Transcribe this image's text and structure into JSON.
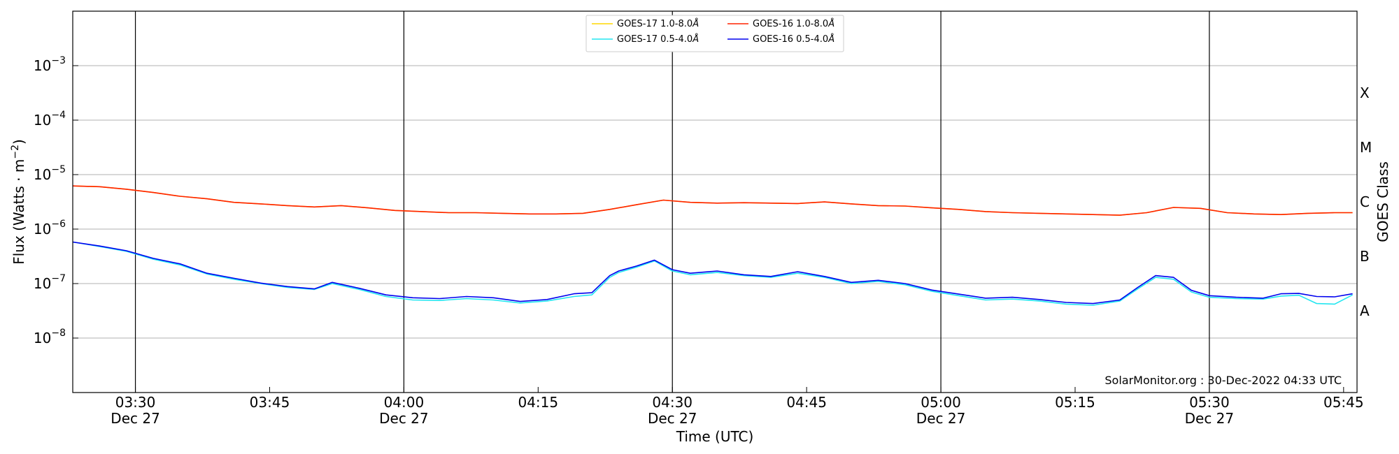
{
  "chart_data": {
    "type": "line",
    "xlabel": "Time (UTC)",
    "ylabel_prefix": "Flux (Watts · m",
    "ylabel_exp": "−2",
    "ylabel_suffix": ")",
    "right_label": "GOES Class",
    "credit": "SolarMonitor.org : 30-Dec-2022 04:33 UTC",
    "y_scale": "log",
    "ylim": [
      1e-09,
      0.01
    ],
    "xlim_minutes": [
      3.3833,
      3.774
    ],
    "x_range": [
      "03:23",
      "05:46"
    ],
    "y_ticks": [
      {
        "base": "10",
        "exp": "−3",
        "value": 0.001
      },
      {
        "base": "10",
        "exp": "−4",
        "value": 0.0001
      },
      {
        "base": "10",
        "exp": "−5",
        "value": 1e-05
      },
      {
        "base": "10",
        "exp": "−6",
        "value": 1e-06
      },
      {
        "base": "10",
        "exp": "−7",
        "value": 1e-07
      },
      {
        "base": "10",
        "exp": "−8",
        "value": 1e-08
      }
    ],
    "x_ticks": [
      {
        "time": "03:30",
        "date": "Dec 27",
        "minute": 210,
        "vline": true
      },
      {
        "time": "03:45",
        "date": "",
        "minute": 225,
        "vline": false
      },
      {
        "time": "04:00",
        "date": "Dec 27",
        "minute": 240,
        "vline": true
      },
      {
        "time": "04:15",
        "date": "",
        "minute": 255,
        "vline": false
      },
      {
        "time": "04:30",
        "date": "Dec 27",
        "minute": 270,
        "vline": true
      },
      {
        "time": "04:45",
        "date": "",
        "minute": 285,
        "vline": false
      },
      {
        "time": "05:00",
        "date": "Dec 27",
        "minute": 300,
        "vline": true
      },
      {
        "time": "05:15",
        "date": "",
        "minute": 315,
        "vline": false
      },
      {
        "time": "05:30",
        "date": "Dec 27",
        "minute": 330,
        "vline": true
      },
      {
        "time": "05:45",
        "date": "",
        "minute": 345,
        "vline": false
      }
    ],
    "goes_classes": [
      {
        "label": "X",
        "value": 0.000316
      },
      {
        "label": "M",
        "value": 3.16e-05
      },
      {
        "label": "C",
        "value": 3.16e-06
      },
      {
        "label": "B",
        "value": 3.16e-07
      },
      {
        "label": "A",
        "value": 3.16e-08
      }
    ],
    "legend": [
      {
        "name": "GOES-17 1.0-8.0",
        "unit": "Å",
        "color": "#ffd700"
      },
      {
        "name": "GOES-16 1.0-8.0",
        "unit": "Å",
        "color": "#ff2200"
      },
      {
        "name": "GOES-17 0.5-4.0",
        "unit": "Å",
        "color": "#22e6f0"
      },
      {
        "name": "GOES-16 0.5-4.0",
        "unit": "Å",
        "color": "#0000ee"
      }
    ],
    "series": [
      {
        "name": "GOES-17 1.0-8.0Å",
        "color": "#ffd700",
        "x": [
          "03:23",
          "03:26",
          "03:29",
          "03:32",
          "03:35",
          "03:38",
          "03:41",
          "03:44",
          "03:47",
          "03:50",
          "03:53",
          "03:56",
          "03:59",
          "04:02",
          "04:05",
          "04:08",
          "04:11",
          "04:14",
          "04:17",
          "04:20",
          "04:23",
          "04:26",
          "04:29",
          "04:32",
          "04:35",
          "04:38",
          "04:41",
          "04:44",
          "04:47",
          "04:50",
          "04:53",
          "04:56",
          "04:59",
          "05:02",
          "05:05",
          "05:08",
          "05:11",
          "05:14",
          "05:17",
          "05:20",
          "05:23",
          "05:26",
          "05:29",
          "05:32",
          "05:35",
          "05:38",
          "05:41",
          "05:44",
          "05:46"
        ],
        "values": [
          6.2e-06,
          6e-06,
          5.4e-06,
          4.7e-06,
          4e-06,
          3.6e-06,
          3.1e-06,
          2.9e-06,
          2.7e-06,
          2.55e-06,
          2.7e-06,
          2.45e-06,
          2.2e-06,
          2.1e-06,
          2e-06,
          2e-06,
          1.95e-06,
          1.9e-06,
          1.9e-06,
          1.95e-06,
          2.3e-06,
          2.8e-06,
          3.4e-06,
          3.1e-06,
          3e-06,
          3.05e-06,
          3e-06,
          2.95e-06,
          3.15e-06,
          2.9e-06,
          2.7e-06,
          2.65e-06,
          2.45e-06,
          2.3e-06,
          2.1e-06,
          2e-06,
          1.95e-06,
          1.9e-06,
          1.85e-06,
          1.8e-06,
          2e-06,
          2.5e-06,
          2.4e-06,
          2e-06,
          1.9e-06,
          1.85e-06,
          1.95e-06,
          2e-06,
          2e-06
        ]
      },
      {
        "name": "GOES-16 1.0-8.0Å",
        "color": "#ff2200",
        "x": [
          "03:23",
          "03:26",
          "03:29",
          "03:32",
          "03:35",
          "03:38",
          "03:41",
          "03:44",
          "03:47",
          "03:50",
          "03:53",
          "03:56",
          "03:59",
          "04:02",
          "04:05",
          "04:08",
          "04:11",
          "04:14",
          "04:17",
          "04:20",
          "04:23",
          "04:26",
          "04:29",
          "04:32",
          "04:35",
          "04:38",
          "04:41",
          "04:44",
          "04:47",
          "04:50",
          "04:53",
          "04:56",
          "04:59",
          "05:02",
          "05:05",
          "05:08",
          "05:11",
          "05:14",
          "05:17",
          "05:20",
          "05:23",
          "05:26",
          "05:29",
          "05:32",
          "05:35",
          "05:38",
          "05:41",
          "05:44",
          "05:46"
        ],
        "values": [
          6.2e-06,
          6e-06,
          5.4e-06,
          4.7e-06,
          4e-06,
          3.6e-06,
          3.1e-06,
          2.9e-06,
          2.7e-06,
          2.55e-06,
          2.7e-06,
          2.45e-06,
          2.2e-06,
          2.1e-06,
          2e-06,
          2e-06,
          1.95e-06,
          1.9e-06,
          1.9e-06,
          1.95e-06,
          2.3e-06,
          2.8e-06,
          3.4e-06,
          3.1e-06,
          3e-06,
          3.05e-06,
          3e-06,
          2.95e-06,
          3.15e-06,
          2.9e-06,
          2.7e-06,
          2.65e-06,
          2.45e-06,
          2.3e-06,
          2.1e-06,
          2e-06,
          1.95e-06,
          1.9e-06,
          1.85e-06,
          1.8e-06,
          2e-06,
          2.5e-06,
          2.4e-06,
          2e-06,
          1.9e-06,
          1.85e-06,
          1.95e-06,
          2e-06,
          2e-06
        ]
      },
      {
        "name": "GOES-17 0.5-4.0Å",
        "color": "#22e6f0",
        "x": [
          "03:23",
          "03:26",
          "03:29",
          "03:32",
          "03:35",
          "03:38",
          "03:41",
          "03:44",
          "03:47",
          "03:50",
          "03:52",
          "03:55",
          "03:58",
          "04:01",
          "04:04",
          "04:07",
          "04:10",
          "04:13",
          "04:16",
          "04:19",
          "04:21",
          "04:23",
          "04:24",
          "04:26",
          "04:28",
          "04:30",
          "04:32",
          "04:35",
          "04:38",
          "04:41",
          "04:44",
          "04:47",
          "04:50",
          "04:53",
          "04:56",
          "04:59",
          "05:02",
          "05:05",
          "05:08",
          "05:11",
          "05:14",
          "05:17",
          "05:20",
          "05:22",
          "05:24",
          "05:26",
          "05:28",
          "05:30",
          "05:33",
          "05:36",
          "05:38",
          "05:40",
          "05:42",
          "05:44",
          "05:46"
        ],
        "values": [
          5.8e-07,
          4.8e-07,
          3.9e-07,
          2.8e-07,
          2.2e-07,
          1.5e-07,
          1.2e-07,
          1e-07,
          8.5e-08,
          7.8e-08,
          1e-07,
          7.8e-08,
          5.8e-08,
          5e-08,
          4.9e-08,
          5.3e-08,
          5e-08,
          4.4e-08,
          4.8e-08,
          5.8e-08,
          6.2e-08,
          1.3e-07,
          1.6e-07,
          2e-07,
          2.6e-07,
          1.7e-07,
          1.45e-07,
          1.6e-07,
          1.4e-07,
          1.3e-07,
          1.55e-07,
          1.3e-07,
          1e-07,
          1.1e-07,
          9.5e-08,
          7.2e-08,
          6e-08,
          5e-08,
          5.2e-08,
          4.8e-08,
          4.2e-08,
          4e-08,
          4.8e-08,
          8e-08,
          1.3e-07,
          1.2e-07,
          7e-08,
          5.6e-08,
          5.3e-08,
          5.2e-08,
          5.9e-08,
          6.1e-08,
          4.3e-08,
          4.2e-08,
          6.2e-08
        ]
      },
      {
        "name": "GOES-16 0.5-4.0Å",
        "color": "#0000ee",
        "x": [
          "03:23",
          "03:26",
          "03:29",
          "03:32",
          "03:35",
          "03:38",
          "03:41",
          "03:44",
          "03:47",
          "03:50",
          "03:52",
          "03:55",
          "03:58",
          "04:01",
          "04:04",
          "04:07",
          "04:10",
          "04:13",
          "04:16",
          "04:19",
          "04:21",
          "04:23",
          "04:24",
          "04:26",
          "04:28",
          "04:30",
          "04:32",
          "04:35",
          "04:38",
          "04:41",
          "04:44",
          "04:47",
          "04:50",
          "04:53",
          "04:56",
          "04:59",
          "05:02",
          "05:05",
          "05:08",
          "05:11",
          "05:14",
          "05:17",
          "05:20",
          "05:22",
          "05:24",
          "05:26",
          "05:28",
          "05:30",
          "05:33",
          "05:36",
          "05:38",
          "05:40",
          "05:42",
          "05:44",
          "05:46"
        ],
        "values": [
          5.8e-07,
          4.9e-07,
          4e-07,
          2.9e-07,
          2.3e-07,
          1.55e-07,
          1.25e-07,
          1.02e-07,
          8.8e-08,
          8e-08,
          1.05e-07,
          8.2e-08,
          6.2e-08,
          5.5e-08,
          5.3e-08,
          5.8e-08,
          5.5e-08,
          4.7e-08,
          5.1e-08,
          6.5e-08,
          6.8e-08,
          1.4e-07,
          1.7e-07,
          2.1e-07,
          2.7e-07,
          1.8e-07,
          1.55e-07,
          1.7e-07,
          1.45e-07,
          1.35e-07,
          1.65e-07,
          1.35e-07,
          1.05e-07,
          1.15e-07,
          1e-07,
          7.6e-08,
          6.4e-08,
          5.4e-08,
          5.6e-08,
          5.1e-08,
          4.5e-08,
          4.3e-08,
          5e-08,
          8.5e-08,
          1.4e-07,
          1.3e-07,
          7.5e-08,
          6e-08,
          5.6e-08,
          5.4e-08,
          6.5e-08,
          6.6e-08,
          5.8e-08,
          5.7e-08,
          6.5e-08
        ]
      }
    ]
  }
}
